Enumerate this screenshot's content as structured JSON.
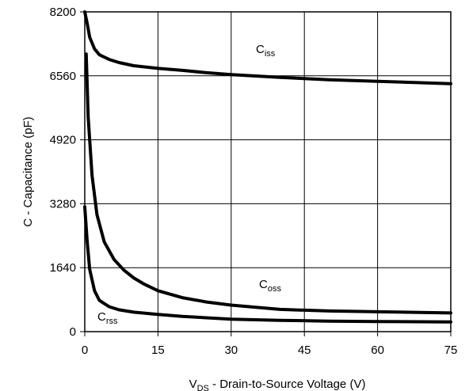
{
  "chart_data": {
    "type": "line",
    "xlabel": {
      "main": "V",
      "sub": "DS",
      "rest": " - Drain-to-Source Voltage (V)"
    },
    "ylabel": "C - Capacitance (pF)",
    "xlim": [
      0,
      75
    ],
    "ylim": [
      0,
      8200
    ],
    "x_ticks": [
      0,
      15,
      30,
      45,
      60,
      75
    ],
    "y_ticks": [
      0,
      1640,
      3280,
      4920,
      6560,
      8200
    ],
    "grid": true,
    "series": [
      {
        "name": "Ciss",
        "label_main": "C",
        "label_sub": "iss",
        "x": [
          0,
          0.5,
          1,
          2,
          3,
          5,
          7,
          10,
          15,
          20,
          25,
          30,
          40,
          50,
          60,
          75
        ],
        "y": [
          8200,
          7900,
          7550,
          7250,
          7100,
          6980,
          6900,
          6820,
          6750,
          6700,
          6640,
          6590,
          6520,
          6460,
          6420,
          6360
        ]
      },
      {
        "name": "Coss",
        "label_main": "C",
        "label_sub": "oss",
        "x": [
          0.3,
          0.7,
          1.5,
          2.5,
          4,
          6,
          8,
          10,
          12,
          15,
          20,
          25,
          30,
          40,
          50,
          60,
          75
        ],
        "y": [
          7120,
          5500,
          4000,
          3000,
          2300,
          1850,
          1580,
          1380,
          1230,
          1050,
          870,
          760,
          680,
          570,
          530,
          510,
          480
        ]
      },
      {
        "name": "Crss",
        "label_main": "C",
        "label_sub": "rss",
        "x": [
          0,
          0.5,
          1,
          2,
          3,
          5,
          7,
          10,
          15,
          20,
          30,
          40,
          50,
          60,
          75
        ],
        "y": [
          3200,
          2300,
          1600,
          1050,
          800,
          640,
          560,
          500,
          440,
          390,
          320,
          290,
          270,
          260,
          250
        ]
      }
    ]
  }
}
